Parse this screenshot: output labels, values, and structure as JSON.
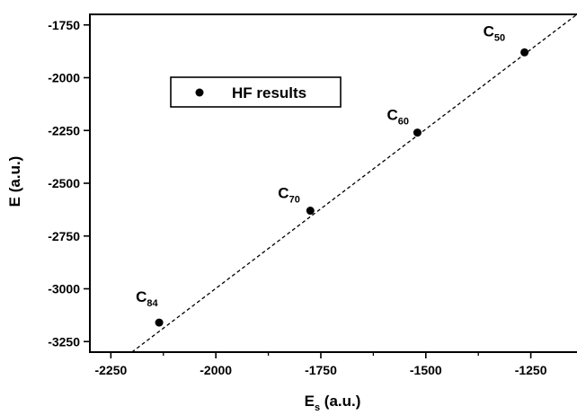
{
  "chart_data": {
    "type": "scatter",
    "title": "",
    "xlabel": "E",
    "xlabel_subscript": "s",
    "xlabel_unit": " (a.u.)",
    "ylabel": "E (a.u.)",
    "xlim": [
      -2300,
      -1140
    ],
    "ylim": [
      -3300,
      -1700
    ],
    "x_ticks": [
      -2250,
      -2000,
      -1750,
      -1500,
      -1250
    ],
    "y_ticks": [
      -1750,
      -2000,
      -2250,
      -2500,
      -2750,
      -3000,
      -3250
    ],
    "grid": false,
    "legend": {
      "position": "upper-left",
      "entries": [
        "HF results"
      ]
    },
    "series": [
      {
        "name": "HF results",
        "marker": "filled-circle",
        "color": "#000000",
        "points": [
          {
            "label": "C",
            "sub": "50",
            "x": -1265,
            "y": -1880
          },
          {
            "label": "C",
            "sub": "60",
            "x": -1520,
            "y": -2260
          },
          {
            "label": "C",
            "sub": "70",
            "x": -1775,
            "y": -2630
          },
          {
            "label": "C",
            "sub": "84",
            "x": -2135,
            "y": -3160
          }
        ]
      }
    ],
    "fit_line": {
      "style": "dashed",
      "color": "#000000",
      "x": [
        -2200,
        -1140
      ],
      "y": [
        -3300,
        -1700
      ]
    }
  }
}
